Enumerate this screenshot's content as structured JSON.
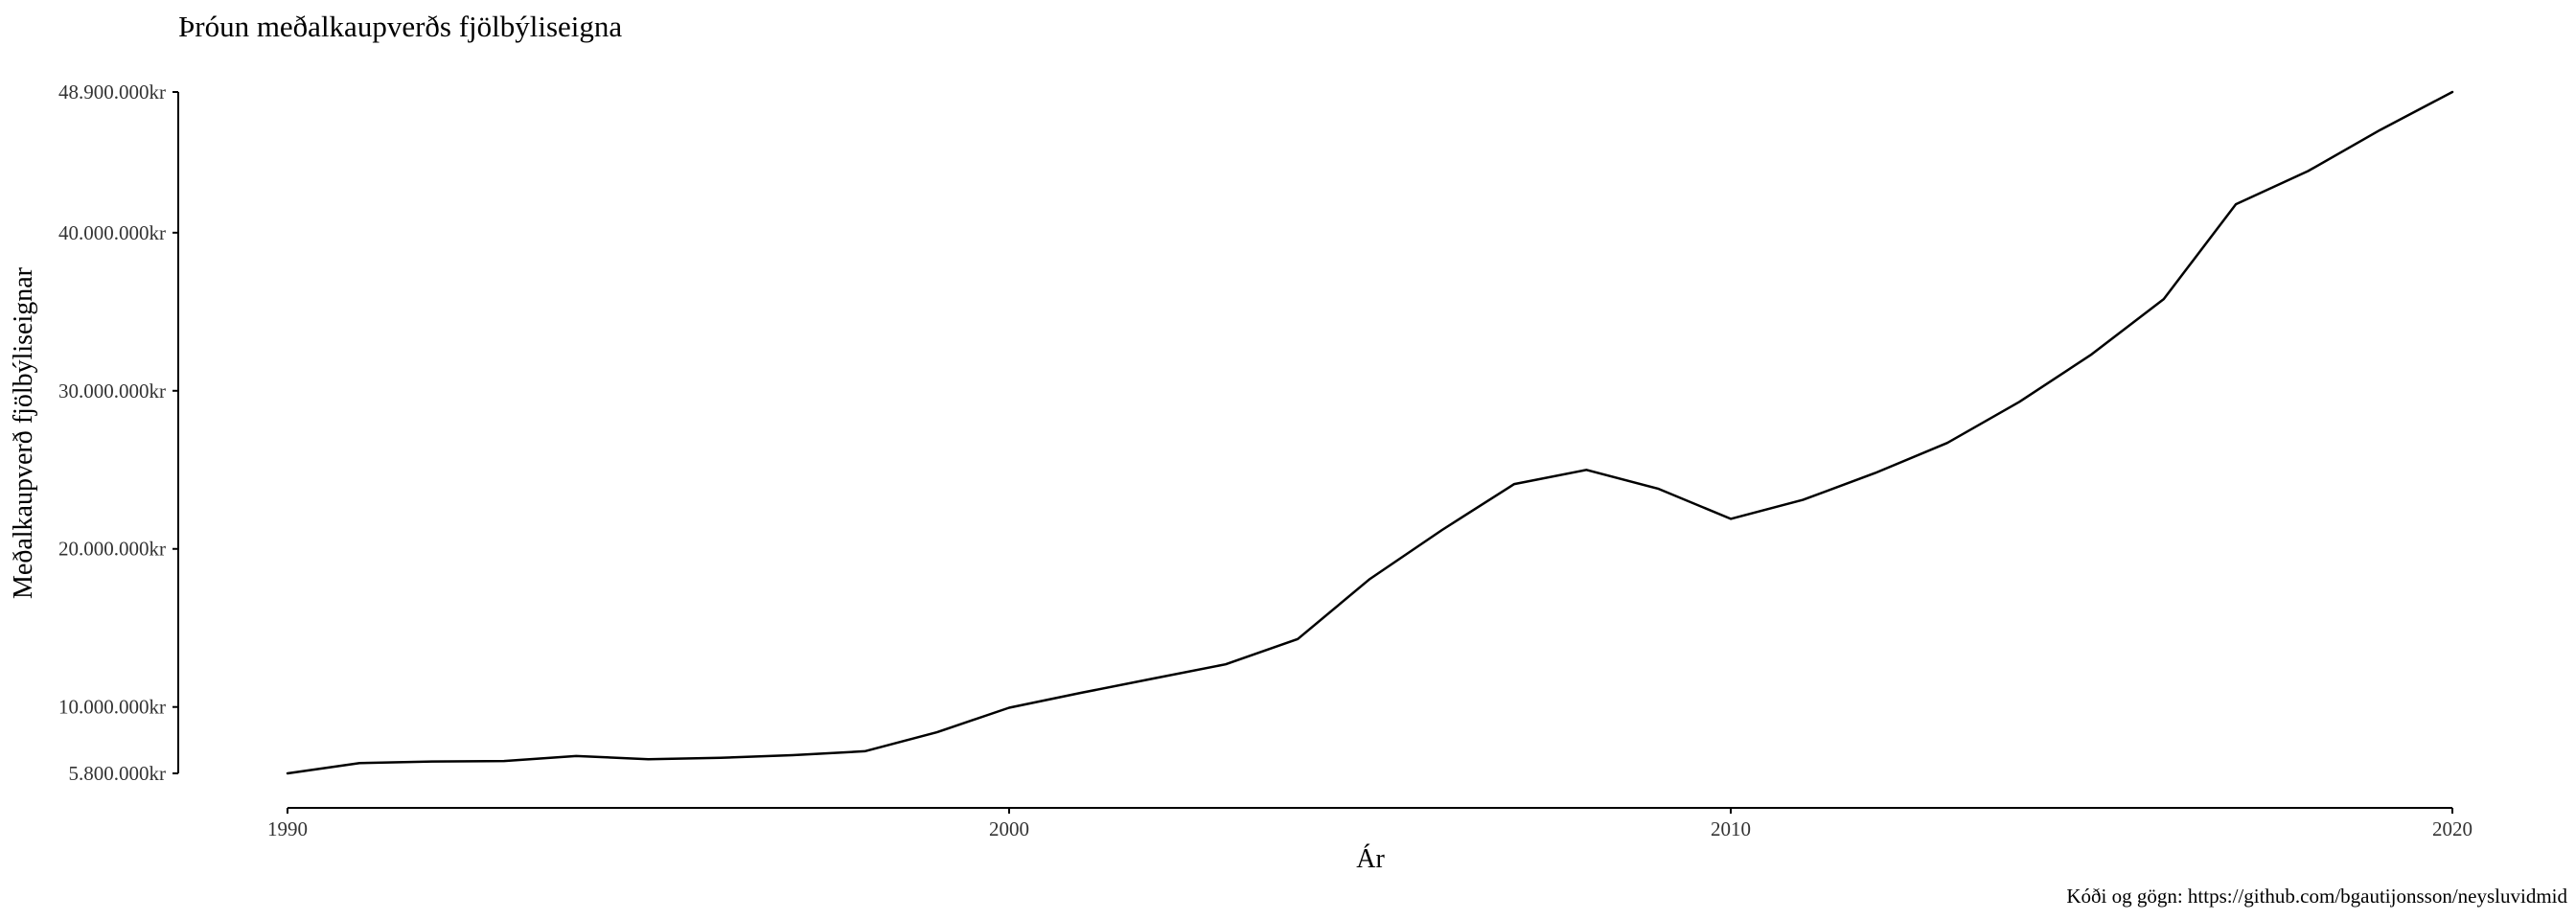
{
  "chart_data": {
    "type": "line",
    "title": "Þróun meðalkaupverðs fjölbýliseigna",
    "xlabel": "Ár",
    "ylabel": "Meðalkaupverð fjölbýliseignar",
    "caption": "Kóði og gögn: https://github.com/bgautijonsson/neysluvidmid",
    "xlim": [
      1990,
      2020
    ],
    "ylim": [
      5800000,
      48900000
    ],
    "grid": false,
    "legend": "none",
    "line_color": "#000000",
    "x_ticks": [
      {
        "value": 1990,
        "label": "1990"
      },
      {
        "value": 2000,
        "label": "2000"
      },
      {
        "value": 2010,
        "label": "2010"
      },
      {
        "value": 2020,
        "label": "2020"
      }
    ],
    "y_ticks": [
      {
        "value": 5800000,
        "label": "5.800.000kr"
      },
      {
        "value": 10000000,
        "label": "10.000.000kr"
      },
      {
        "value": 20000000,
        "label": "20.000.000kr"
      },
      {
        "value": 30000000,
        "label": "30.000.000kr"
      },
      {
        "value": 40000000,
        "label": "40.000.000kr"
      },
      {
        "value": 48900000,
        "label": "48.900.000kr"
      }
    ],
    "series": [
      {
        "x": [
          1990,
          1991,
          1992,
          1993,
          1994,
          1995,
          1996,
          1997,
          1998,
          1999,
          2000,
          2001,
          2002,
          2003,
          2004,
          2005,
          2006,
          2007,
          2008,
          2009,
          2010,
          2011,
          2012,
          2013,
          2014,
          2015,
          2016,
          2017,
          2018,
          2019,
          2020
        ],
        "y": [
          5800000,
          6450000,
          6550000,
          6580000,
          6900000,
          6700000,
          6780000,
          6950000,
          7200000,
          8400000,
          9950000,
          10900000,
          11800000,
          12700000,
          14300000,
          18100000,
          21200000,
          24100000,
          25000000,
          23800000,
          21900000,
          23100000,
          24800000,
          26700000,
          29300000,
          32300000,
          35800000,
          41800000,
          43900000,
          46500000,
          48900000
        ]
      }
    ]
  }
}
